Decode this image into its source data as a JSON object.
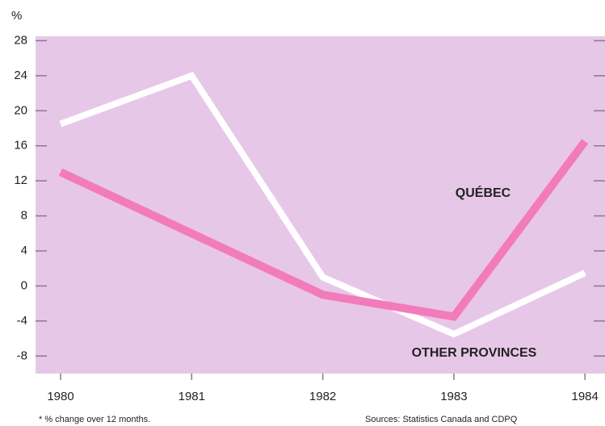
{
  "chart_data": {
    "type": "line",
    "y_label": "%",
    "categories": [
      "1980",
      "1981",
      "1982",
      "1983",
      "1984"
    ],
    "series": [
      {
        "name": "QUÉBEC",
        "color": "#f27bbb",
        "values": [
          13,
          6,
          -1,
          -3.5,
          16.5
        ]
      },
      {
        "name": "OTHER PROVINCES",
        "color": "#ffffff",
        "values": [
          18.5,
          24,
          1,
          -5.5,
          1.5
        ]
      }
    ],
    "ylim": [
      -10,
      28.5
    ],
    "yticks": [
      -8,
      -4,
      0,
      4,
      8,
      12,
      16,
      20,
      24,
      28
    ],
    "footnote": "* % change over 12 months.",
    "source": "Sources:  Statistics Canada and CDPQ",
    "background": "#e7c7e7"
  }
}
